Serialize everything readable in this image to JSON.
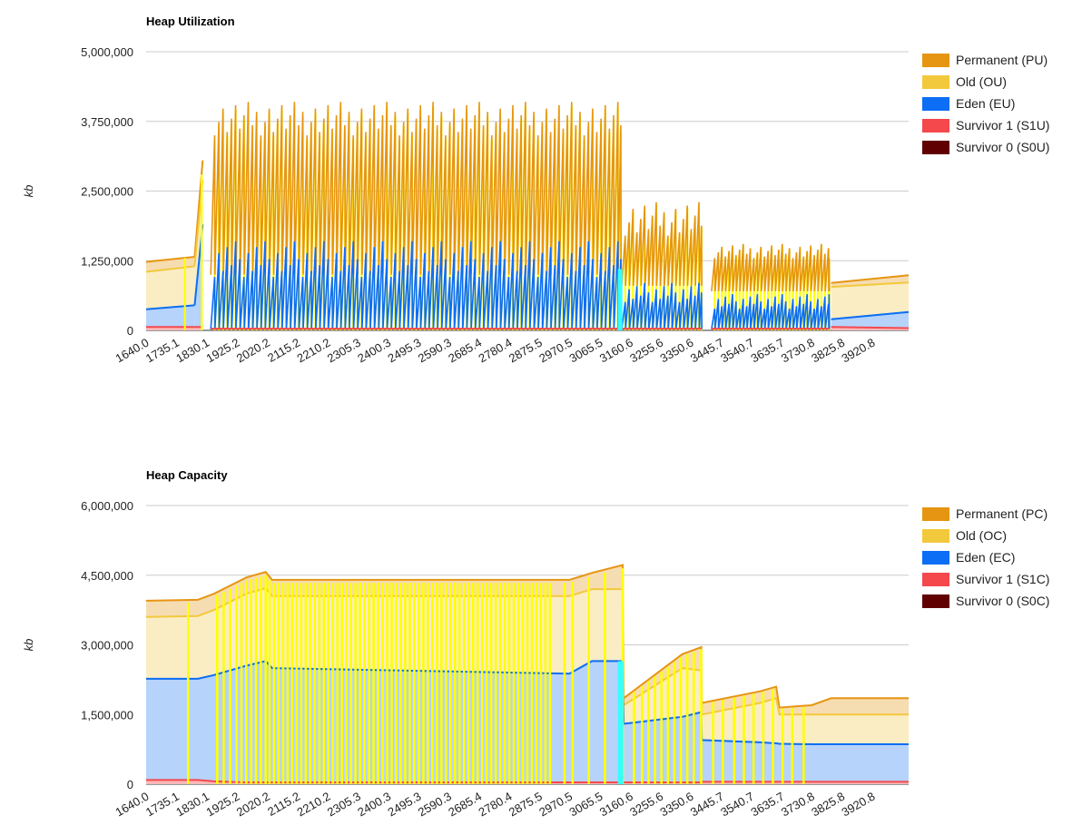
{
  "chart_data": [
    {
      "type": "area",
      "title": "Heap Utilization",
      "ylabel": "kb",
      "ylim": [
        0,
        5000000
      ],
      "yticks": [
        "5,000,000",
        "3,750,000",
        "2,500,000",
        "1,250,000",
        "0"
      ],
      "ytick_values": [
        5000000,
        3750000,
        2500000,
        1250000,
        0
      ],
      "x_tick_labels": [
        "1640.0",
        "1735.1",
        "1830.1",
        "1925.2",
        "2020.2",
        "2115.2",
        "2210.2",
        "2305.3",
        "2400.3",
        "2495.3",
        "2590.3",
        "2685.4",
        "2780.4",
        "2875.5",
        "2970.5",
        "3065.5",
        "3160.6",
        "3255.6",
        "3350.6",
        "3445.7",
        "3540.7",
        "3635.7",
        "3730.8",
        "3825.8",
        "3920.8"
      ],
      "xlim": [
        1640.0,
        4000.0
      ],
      "legend_position": "right",
      "grid": true,
      "series": [
        {
          "name": "Permanent (PU)",
          "color": "#e69512"
        },
        {
          "name": "Old (OU)",
          "color": "#f2c93c"
        },
        {
          "name": "Eden (EU)",
          "color": "#0b6ef5"
        },
        {
          "name": "Survivor 1 (S1U)",
          "color": "#f5484d"
        },
        {
          "name": "Survivor 0 (S0U)",
          "color": "#600000"
        }
      ],
      "segments": [
        {
          "x0": 1640.0,
          "x1": 1790.0,
          "s0": 10000,
          "s1": 60000,
          "eden0": 380000,
          "eden1": 450000,
          "old0": 1050000,
          "old1": 1150000,
          "total0": 1230000,
          "total1": 1320000
        },
        {
          "x0": 1790.0,
          "x1": 1815.0,
          "s0": 10000,
          "s1": 60000,
          "eden0": 450000,
          "eden1": 1900000,
          "old0": 1150000,
          "old1": 2700000,
          "total0": 1320000,
          "total1": 3050000
        },
        {
          "x0": 1840.0,
          "x1": 3110.0,
          "type": "sawtooth",
          "peak_min": 3500000,
          "peak_max": 4100000,
          "trough": 1000000,
          "eden_peak": 1600000,
          "period": 13.0
        },
        {
          "x0": 3112.0,
          "x1": 3360.0,
          "type": "sawtooth",
          "peak_min": 1700000,
          "peak_max": 2300000,
          "trough": 800000,
          "eden_peak": 850000,
          "period": 12.0
        },
        {
          "x0": 3390.0,
          "x1": 3755.0,
          "type": "sawtooth",
          "peak_min": 1300000,
          "peak_max": 1550000,
          "trough": 700000,
          "eden_peak": 650000,
          "period": 11.0
        },
        {
          "x0": 3760.0,
          "x1": 4000.0,
          "s0": 10000,
          "s1": 40000,
          "eden0": 200000,
          "eden1": 330000,
          "old0": 780000,
          "old1": 860000,
          "total0": 850000,
          "total1": 990000
        }
      ]
    },
    {
      "type": "area",
      "title": "Heap Capacity",
      "ylabel": "kb",
      "ylim": [
        0,
        6000000
      ],
      "yticks": [
        "6,000,000",
        "4,500,000",
        "3,000,000",
        "1,500,000",
        "0"
      ],
      "ytick_values": [
        6000000,
        4500000,
        3000000,
        1500000,
        0
      ],
      "x_tick_labels": [
        "1640.0",
        "1735.1",
        "1830.1",
        "1925.2",
        "2020.2",
        "2115.2",
        "2210.2",
        "2305.3",
        "2400.3",
        "2495.3",
        "2590.3",
        "2685.4",
        "2780.4",
        "2875.5",
        "2970.5",
        "3065.5",
        "3160.6",
        "3255.6",
        "3350.6",
        "3445.7",
        "3540.7",
        "3635.7",
        "3730.8",
        "3825.8",
        "3920.8"
      ],
      "xlim": [
        1640.0,
        4000.0
      ],
      "legend_position": "right",
      "grid": true,
      "series": [
        {
          "name": "Permanent (PC)",
          "color": "#e69512"
        },
        {
          "name": "Old (OC)",
          "color": "#f2c93c"
        },
        {
          "name": "Eden (EC)",
          "color": "#0b6ef5"
        },
        {
          "name": "Survivor 1 (S1C)",
          "color": "#f5484d"
        },
        {
          "name": "Survivor 0 (S0C)",
          "color": "#600000"
        }
      ],
      "points": [
        {
          "x": 1640.0,
          "sv": 90000,
          "eden": 2270000,
          "old": 3600000,
          "total": 3950000
        },
        {
          "x": 1800.0,
          "sv": 90000,
          "eden": 2270000,
          "old": 3620000,
          "total": 3970000
        },
        {
          "x": 1850.0,
          "sv": 60000,
          "eden": 2350000,
          "old": 3750000,
          "total": 4100000
        },
        {
          "x": 1950.0,
          "sv": 40000,
          "eden": 2550000,
          "old": 4100000,
          "total": 4450000
        },
        {
          "x": 2010.0,
          "sv": 40000,
          "eden": 2650000,
          "old": 4220000,
          "total": 4570000
        },
        {
          "x": 2030.0,
          "sv": 40000,
          "eden": 2500000,
          "old": 4050000,
          "total": 4400000
        },
        {
          "x": 2950.0,
          "sv": 40000,
          "eden": 2380000,
          "old": 4050000,
          "total": 4400000
        },
        {
          "x": 3020.0,
          "sv": 40000,
          "eden": 2650000,
          "old": 4200000,
          "total": 4550000
        },
        {
          "x": 3115.0,
          "sv": 40000,
          "eden": 2650000,
          "old": 4200000,
          "total": 4720000
        },
        {
          "x": 3118.0,
          "sv": 40000,
          "eden": 1300000,
          "old": 1700000,
          "total": 1850000
        },
        {
          "x": 3300.0,
          "sv": 40000,
          "eden": 1450000,
          "old": 2500000,
          "total": 2800000
        },
        {
          "x": 3358.0,
          "sv": 40000,
          "eden": 1550000,
          "old": 2450000,
          "total": 2950000
        },
        {
          "x": 3360.0,
          "sv": 50000,
          "eden": 950000,
          "old": 1500000,
          "total": 1750000
        },
        {
          "x": 3540.0,
          "sv": 50000,
          "eden": 900000,
          "old": 1750000,
          "total": 2000000
        },
        {
          "x": 3590.0,
          "sv": 50000,
          "eden": 880000,
          "old": 1850000,
          "total": 2100000
        },
        {
          "x": 3600.0,
          "sv": 50000,
          "eden": 870000,
          "old": 1500000,
          "total": 1650000
        },
        {
          "x": 3700.0,
          "sv": 50000,
          "eden": 860000,
          "old": 1500000,
          "total": 1700000
        },
        {
          "x": 3760.0,
          "sv": 50000,
          "eden": 860000,
          "old": 1500000,
          "total": 1850000
        },
        {
          "x": 4000.0,
          "sv": 50000,
          "eden": 860000,
          "old": 1500000,
          "total": 1850000
        }
      ],
      "gc_markers": [
        1770,
        1860,
        1880,
        1900,
        1920,
        1935,
        1950,
        1965,
        1980,
        1995,
        2010,
        2022,
        2036,
        2050,
        2064,
        2078,
        2092,
        2106,
        2120,
        2134,
        2148,
        2162,
        2176,
        2190,
        2204,
        2218,
        2232,
        2246,
        2260,
        2274,
        2288,
        2302,
        2316,
        2330,
        2344,
        2358,
        2372,
        2386,
        2400,
        2414,
        2428,
        2442,
        2456,
        2470,
        2484,
        2498,
        2512,
        2526,
        2540,
        2554,
        2568,
        2582,
        2596,
        2610,
        2624,
        2638,
        2652,
        2666,
        2680,
        2694,
        2708,
        2722,
        2736,
        2750,
        2764,
        2778,
        2792,
        2806,
        2820,
        2834,
        2848,
        2862,
        2876,
        2890,
        2935,
        2960,
        3010,
        3060,
        3115,
        3150,
        3175,
        3195,
        3215,
        3235,
        3255,
        3275,
        3295,
        3315,
        3335,
        3358,
        3395,
        3425,
        3460,
        3490,
        3520,
        3550,
        3580,
        3610,
        3640,
        3675
      ]
    }
  ]
}
